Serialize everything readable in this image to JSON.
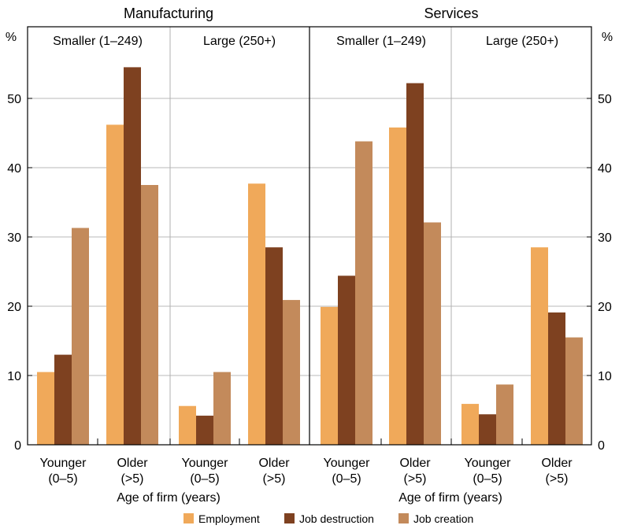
{
  "chart_data": {
    "type": "bar",
    "y_unit": "%",
    "ylim": [
      0,
      60
    ],
    "y_ticks": [
      0,
      10,
      20,
      30,
      40,
      50
    ],
    "grid": true,
    "legend_position": "bottom",
    "xlabel": "Age of firm (years)",
    "series": [
      {
        "name": "Employment",
        "color": "#f0a95a"
      },
      {
        "name": "Job destruction",
        "color": "#7e4120"
      },
      {
        "name": "Job creation",
        "color": "#c38a5b"
      }
    ],
    "sectors": [
      {
        "title": "Manufacturing",
        "xlabel": "Age of firm (years)",
        "size_groups": [
          {
            "label": "Smaller (1–249)",
            "age_groups": [
              {
                "label_line1": "Younger",
                "label_line2": "(0–5)",
                "values": [
                  10.5,
                  13.0,
                  31.3
                ]
              },
              {
                "label_line1": "Older",
                "label_line2": "(>5)",
                "values": [
                  46.2,
                  54.5,
                  37.5
                ]
              }
            ]
          },
          {
            "label": "Large (250+)",
            "age_groups": [
              {
                "label_line1": "Younger",
                "label_line2": "(0–5)",
                "values": [
                  5.6,
                  4.2,
                  10.5
                ]
              },
              {
                "label_line1": "Older",
                "label_line2": "(>5)",
                "values": [
                  37.7,
                  28.5,
                  20.9
                ]
              }
            ]
          }
        ]
      },
      {
        "title": "Services",
        "xlabel": "Age of firm (years)",
        "size_groups": [
          {
            "label": "Smaller (1–249)",
            "age_groups": [
              {
                "label_line1": "Younger",
                "label_line2": "(0–5)",
                "values": [
                  19.9,
                  24.4,
                  43.8
                ]
              },
              {
                "label_line1": "Older",
                "label_line2": "(>5)",
                "values": [
                  45.8,
                  52.2,
                  32.1
                ]
              }
            ]
          },
          {
            "label": "Large (250+)",
            "age_groups": [
              {
                "label_line1": "Younger",
                "label_line2": "(0–5)",
                "values": [
                  5.9,
                  4.4,
                  8.7
                ]
              },
              {
                "label_line1": "Older",
                "label_line2": "(>5)",
                "values": [
                  28.5,
                  19.1,
                  15.5
                ]
              }
            ]
          }
        ]
      }
    ]
  }
}
